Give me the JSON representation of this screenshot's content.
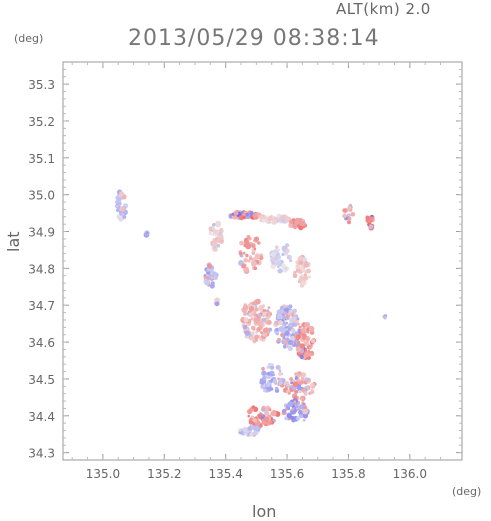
{
  "header": {
    "altitude_label": "ALT(km) 2.0",
    "timestamp": "2013/05/29 08:38:14"
  },
  "units": {
    "y_unit": "(deg)",
    "x_unit": "(deg)"
  },
  "chart_data": {
    "type": "scatter",
    "title": "2013/05/29 08:38:14",
    "xlabel": "lon",
    "ylabel": "lat",
    "xlim": [
      134.87,
      136.17
    ],
    "ylim": [
      34.28,
      35.36
    ],
    "xticks": [
      "135.0",
      "135.2",
      "135.4",
      "135.6",
      "135.8",
      "136.0"
    ],
    "yticks": [
      "34.3",
      "34.4",
      "34.5",
      "34.6",
      "34.7",
      "34.8",
      "34.9",
      "35.0",
      "35.1",
      "35.2",
      "35.3"
    ],
    "grid": false,
    "colors": {
      "positive": "#f05a5a",
      "negative": "#5a5af0",
      "axis": "#999999"
    },
    "clusters": [
      {
        "lon": 135.06,
        "lat": 34.97,
        "rx": 0.015,
        "ry": 0.04,
        "value": -0.4,
        "n": 40
      },
      {
        "lon": 135.14,
        "lat": 34.895,
        "rx": 0.004,
        "ry": 0.005,
        "value": -0.5,
        "n": 4
      },
      {
        "lon": 135.37,
        "lat": 34.89,
        "rx": 0.02,
        "ry": 0.04,
        "value": 0.35,
        "n": 40
      },
      {
        "lon": 135.46,
        "lat": 34.945,
        "rx": 0.05,
        "ry": 0.008,
        "value": 0.8,
        "n": 60
      },
      {
        "lon": 135.56,
        "lat": 34.935,
        "rx": 0.05,
        "ry": 0.01,
        "value": 0.3,
        "n": 60
      },
      {
        "lon": 135.635,
        "lat": 34.92,
        "rx": 0.025,
        "ry": 0.015,
        "value": 0.7,
        "n": 30
      },
      {
        "lon": 135.35,
        "lat": 34.78,
        "rx": 0.018,
        "ry": 0.03,
        "value": -0.55,
        "n": 40
      },
      {
        "lon": 135.37,
        "lat": 34.71,
        "rx": 0.004,
        "ry": 0.008,
        "value": -0.5,
        "n": 4
      },
      {
        "lon": 135.48,
        "lat": 34.84,
        "rx": 0.04,
        "ry": 0.05,
        "value": 0.6,
        "n": 50
      },
      {
        "lon": 135.58,
        "lat": 34.83,
        "rx": 0.035,
        "ry": 0.04,
        "value": -0.3,
        "n": 40
      },
      {
        "lon": 135.65,
        "lat": 34.79,
        "rx": 0.025,
        "ry": 0.04,
        "value": 0.4,
        "n": 40
      },
      {
        "lon": 135.5,
        "lat": 34.66,
        "rx": 0.05,
        "ry": 0.06,
        "value": 0.5,
        "n": 120
      },
      {
        "lon": 135.6,
        "lat": 34.64,
        "rx": 0.04,
        "ry": 0.06,
        "value": -0.5,
        "n": 120
      },
      {
        "lon": 135.66,
        "lat": 34.6,
        "rx": 0.03,
        "ry": 0.05,
        "value": 0.7,
        "n": 60
      },
      {
        "lon": 135.55,
        "lat": 34.5,
        "rx": 0.04,
        "ry": 0.04,
        "value": -0.5,
        "n": 60
      },
      {
        "lon": 135.64,
        "lat": 34.48,
        "rx": 0.05,
        "ry": 0.035,
        "value": 0.6,
        "n": 60
      },
      {
        "lon": 135.52,
        "lat": 34.4,
        "rx": 0.05,
        "ry": 0.03,
        "value": 0.7,
        "n": 50
      },
      {
        "lon": 135.63,
        "lat": 34.41,
        "rx": 0.04,
        "ry": 0.03,
        "value": -0.6,
        "n": 50
      },
      {
        "lon": 135.48,
        "lat": 34.36,
        "rx": 0.04,
        "ry": 0.012,
        "value": -0.4,
        "n": 30
      },
      {
        "lon": 135.8,
        "lat": 34.95,
        "rx": 0.015,
        "ry": 0.03,
        "value": 0.6,
        "n": 20
      },
      {
        "lon": 135.87,
        "lat": 34.925,
        "rx": 0.01,
        "ry": 0.025,
        "value": 0.8,
        "n": 15
      },
      {
        "lon": 135.92,
        "lat": 34.67,
        "rx": 0.004,
        "ry": 0.005,
        "value": -0.7,
        "n": 4
      }
    ]
  }
}
